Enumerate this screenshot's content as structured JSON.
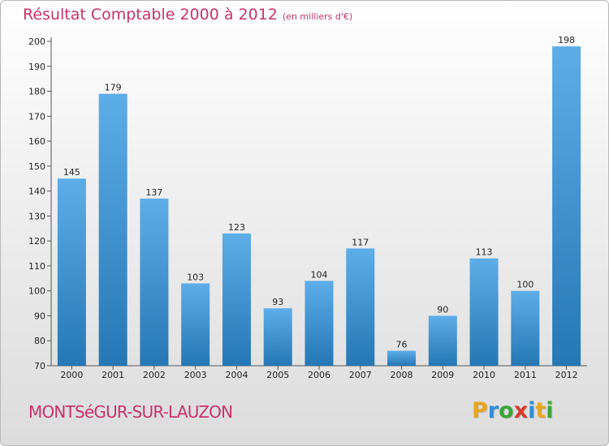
{
  "title": {
    "main": "Résultat Comptable 2000 à 2012",
    "unit": "(en milliers d'€)"
  },
  "commune": "MONTSéGUR-SUR-LAUZON",
  "logo": {
    "text": "Proxiti",
    "letters": [
      {
        "ch": "P",
        "color": "#e8a520"
      },
      {
        "ch": "r",
        "color": "#2d8ed8"
      },
      {
        "ch": "o",
        "color": "#3aa53a"
      },
      {
        "ch": "x",
        "color": "#d83a2d"
      },
      {
        "ch": "i",
        "color": "#2d8ed8"
      },
      {
        "ch": "t",
        "color": "#e8a520"
      },
      {
        "ch": "i",
        "color": "#3aa53a"
      }
    ]
  },
  "colors": {
    "bar_top": "#5dade8",
    "bar_bottom": "#2577b5",
    "axis_text": "#222222",
    "title": "#c8326e"
  },
  "chart_data": {
    "type": "bar",
    "title": "Résultat Comptable 2000 à 2012",
    "xlabel": "",
    "ylabel": "",
    "categories": [
      "2000",
      "2001",
      "2002",
      "2003",
      "2004",
      "2005",
      "2006",
      "2007",
      "2008",
      "2009",
      "2010",
      "2011",
      "2012"
    ],
    "values": [
      145,
      179,
      137,
      103,
      123,
      93,
      104,
      117,
      76,
      90,
      113,
      100,
      198
    ],
    "ylim": [
      70,
      200
    ],
    "yticks": [
      70,
      80,
      90,
      100,
      110,
      120,
      130,
      140,
      150,
      160,
      170,
      180,
      190,
      200
    ],
    "grid": false
  }
}
